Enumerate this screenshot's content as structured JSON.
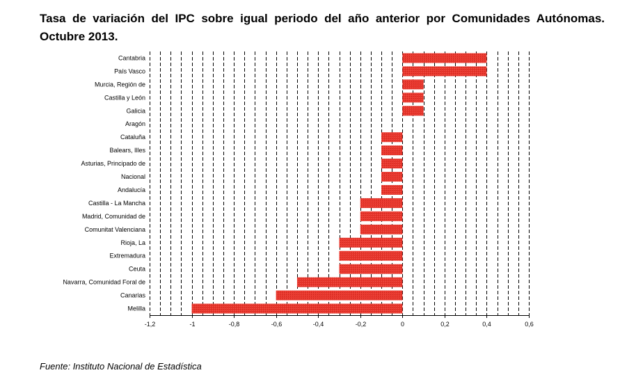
{
  "title": "Tasa de variación del IPC sobre igual periodo del año anterior por Comunidades Autónomas. Octubre 2013.",
  "source": "Fuente: Instituto Nacional de Estadística",
  "colors": {
    "bar": "#e8372d",
    "grid": "#000000"
  },
  "chart_data": {
    "type": "bar",
    "orientation": "horizontal",
    "categories": [
      "Cantabria",
      "País Vasco",
      "Murcia, Región de",
      "Castilla y León",
      "Galicia",
      "Aragón",
      "Cataluña",
      "Balears, Illes",
      "Asturias, Principado de",
      "Nacional",
      "Andalucía",
      "Castilla - La Mancha",
      "Madrid, Comunidad de",
      "Comunitat Valenciana",
      "Rioja, La",
      "Extremadura",
      "Ceuta",
      "Navarra, Comunidad Foral de",
      "Canarias",
      "Melilla"
    ],
    "values": [
      0.4,
      0.4,
      0.1,
      0.1,
      0.1,
      0.0,
      -0.1,
      -0.1,
      -0.1,
      -0.1,
      -0.1,
      -0.2,
      -0.2,
      -0.2,
      -0.3,
      -0.3,
      -0.3,
      -0.5,
      -0.6,
      -1.0
    ],
    "xlim": [
      -1.2,
      0.6
    ],
    "xticks": [
      -1.2,
      -1.0,
      -0.8,
      -0.6,
      -0.4,
      -0.2,
      0.0,
      0.2,
      0.4,
      0.6
    ],
    "xtick_labels": [
      "-1,2",
      "-1",
      "-0,8",
      "-0,6",
      "-0,4",
      "-0,2",
      "0",
      "0,2",
      "0,4",
      "0,6"
    ],
    "grid": "vertical dashed",
    "legend": "none"
  }
}
